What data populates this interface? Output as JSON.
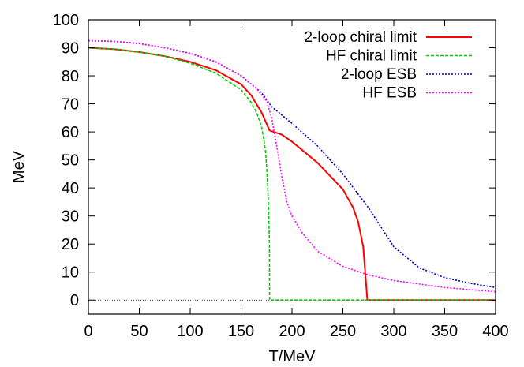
{
  "chart_data": {
    "type": "line",
    "title": "",
    "xlabel": "T/MeV",
    "ylabel": "MeV",
    "xlim": [
      0,
      400
    ],
    "ylim": [
      -5,
      100
    ],
    "xticks": [
      0,
      50,
      100,
      150,
      200,
      250,
      300,
      350,
      400
    ],
    "yticks": [
      0,
      10,
      20,
      30,
      40,
      50,
      60,
      70,
      80,
      90,
      100
    ],
    "grid": false,
    "legend_position": "top-right",
    "zero_line": {
      "y": 0,
      "color": "#000000",
      "dash": "dotted"
    },
    "series": [
      {
        "name": "2-loop chiral limit",
        "color": "#ff0000",
        "dash": "solid",
        "x": [
          0,
          25,
          50,
          75,
          100,
          125,
          150,
          160,
          170,
          178,
          190,
          200,
          225,
          250,
          260,
          265,
          270,
          274,
          300,
          350,
          400
        ],
        "y": [
          90,
          89.5,
          88.5,
          87,
          85,
          82,
          77,
          73,
          67,
          60.5,
          59,
          56.5,
          49,
          39.5,
          33,
          28,
          19,
          0,
          0,
          0,
          0
        ]
      },
      {
        "name": "HF chiral limit",
        "color": "#00cc00",
        "dash": "dashed",
        "x": [
          0,
          25,
          50,
          75,
          100,
          125,
          150,
          160,
          165,
          170,
          172,
          174,
          175,
          176,
          177,
          177.8,
          178,
          200,
          250,
          300,
          350,
          400
        ],
        "y": [
          90,
          89.5,
          88.5,
          87,
          84.5,
          81,
          75,
          70.5,
          67,
          62,
          58,
          53,
          48,
          42,
          33,
          20,
          0,
          0,
          0,
          0,
          0,
          0
        ]
      },
      {
        "name": "2-loop ESB",
        "color": "#0000cc",
        "dash": "dotted",
        "x": [
          0,
          25,
          50,
          75,
          100,
          125,
          150,
          170,
          180,
          200,
          225,
          250,
          275,
          300,
          325,
          350,
          375,
          400
        ],
        "y": [
          92.5,
          92.3,
          91.5,
          90,
          88,
          85,
          80,
          74,
          69,
          63,
          55,
          45,
          33,
          19,
          11.5,
          8,
          6,
          4.5
        ]
      },
      {
        "name": "HF ESB",
        "color": "#ff00ff",
        "dash": "dotted",
        "x": [
          0,
          25,
          50,
          75,
          100,
          125,
          150,
          165,
          175,
          180,
          185,
          190,
          195,
          200,
          210,
          225,
          250,
          275,
          300,
          350,
          400
        ],
        "y": [
          92.5,
          92.3,
          91.5,
          90,
          88,
          85,
          80,
          75.5,
          71,
          65,
          55,
          44,
          35,
          30,
          24,
          17.5,
          12,
          9,
          7,
          4.5,
          3
        ]
      }
    ]
  }
}
